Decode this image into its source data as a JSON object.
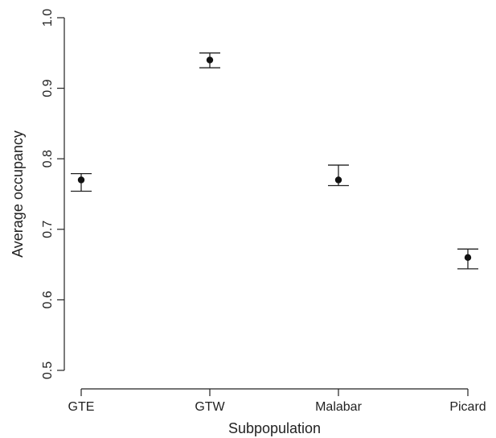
{
  "chart_data": {
    "type": "scatter",
    "xlabel": "Subpopulation",
    "ylabel": "Average occupancy",
    "categories": [
      "GTE",
      "GTW",
      "Malabar",
      "Picard"
    ],
    "series": [
      {
        "values": [
          0.77,
          0.94,
          0.77,
          0.66
        ],
        "lower": [
          0.754,
          0.929,
          0.762,
          0.644
        ],
        "upper": [
          0.779,
          0.95,
          0.791,
          0.672
        ]
      }
    ],
    "ylim": [
      0.5,
      1.0
    ],
    "yticks": [
      "0.5",
      "0.6",
      "0.7",
      "0.8",
      "0.9",
      "1.0"
    ],
    "grid": false,
    "colors": {
      "marker": "#111111",
      "axis": "#222222"
    }
  }
}
